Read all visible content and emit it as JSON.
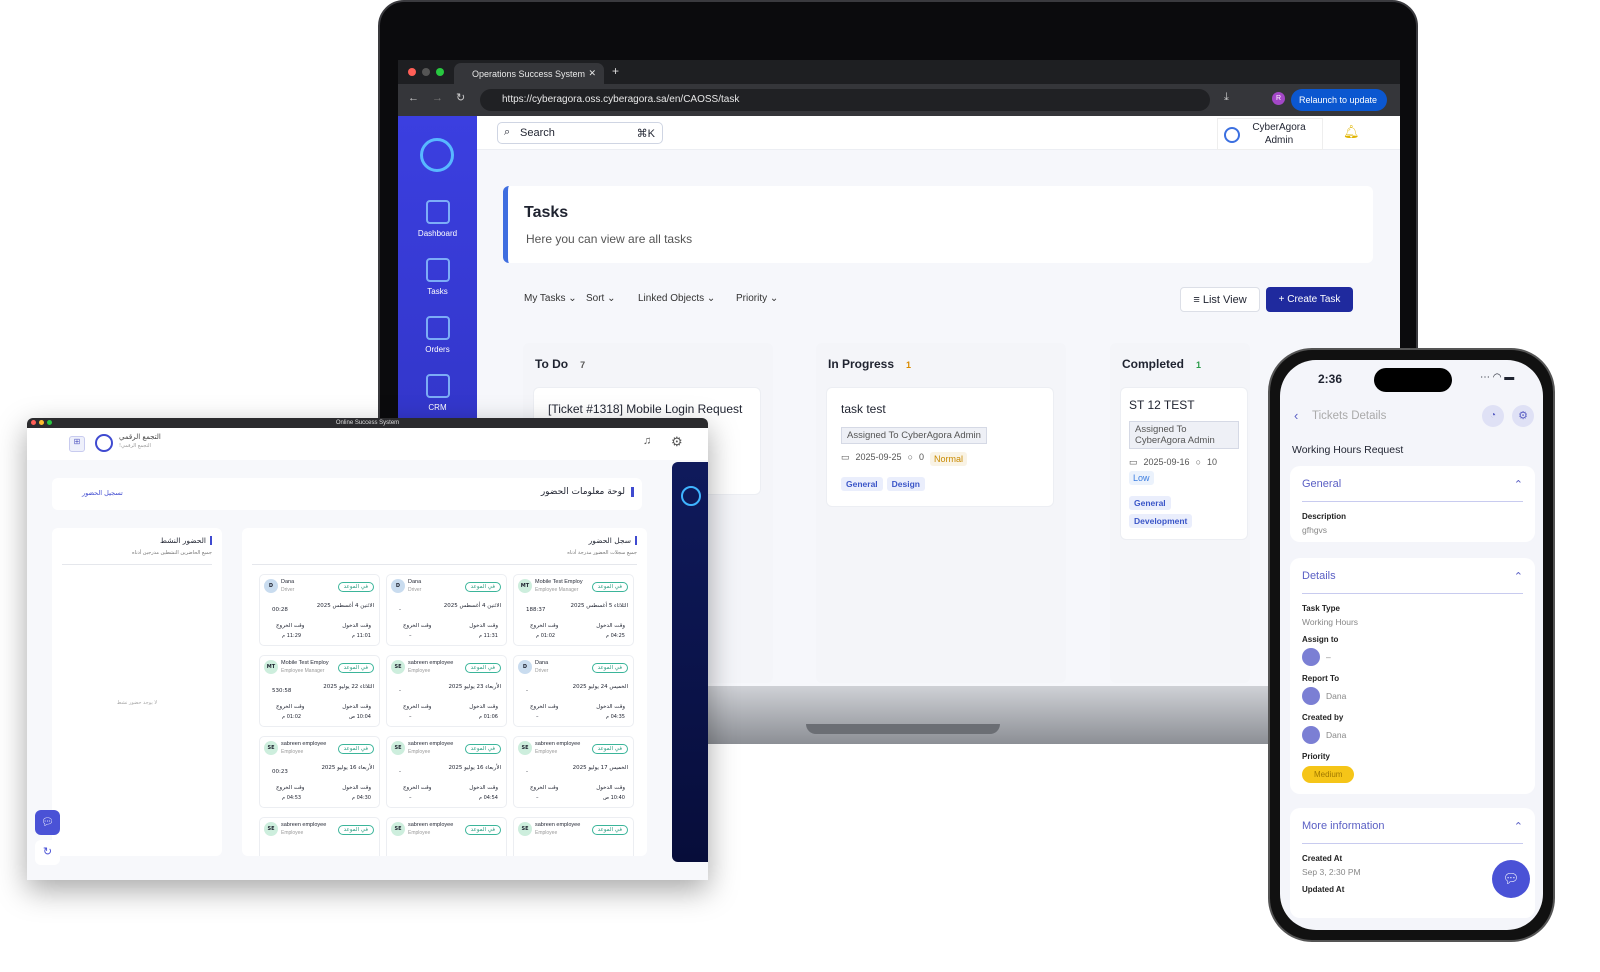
{
  "browser": {
    "tab_title": "Operations Success System",
    "url": "https://cyberagora.oss.cyberagora.sa/en/CAOSS/task",
    "relaunch": "Relaunch to update",
    "profile_initial": "R"
  },
  "app": {
    "search_placeholder": "Search",
    "search_shortcut": "⌘K",
    "user_line1": "CyberAgora",
    "user_line2": "Admin",
    "sidebar": [
      {
        "label": "Dashboard",
        "icon": "dashboard-icon"
      },
      {
        "label": "Tasks",
        "icon": "tasks-icon"
      },
      {
        "label": "Orders",
        "icon": "orders-icon"
      },
      {
        "label": "CRM",
        "icon": "crm-icon"
      }
    ],
    "page_title": "Tasks",
    "page_subtitle": "Here you can view are all tasks",
    "filters": [
      "My Tasks",
      "Sort",
      "Linked Objects",
      "Priority"
    ],
    "list_view": "List View",
    "create_task": "Create Task",
    "columns": [
      {
        "title": "To Do",
        "count": "7",
        "count_color": "#555",
        "cards": [
          {
            "title": "[Ticket #1318] Mobile Login Request"
          }
        ]
      },
      {
        "title": "In Progress",
        "count": "1",
        "count_color": "#d98a00",
        "cards": [
          {
            "title": "task test",
            "assigned": "Assigned To CyberAgora Admin",
            "date": "2025-09-25",
            "comments": "0",
            "priority": "Normal",
            "priority_color": "#c98a00",
            "tags": [
              "General",
              "Design"
            ]
          }
        ]
      },
      {
        "title": "Completed",
        "count": "1",
        "count_color": "#2a9c4a",
        "cards": [
          {
            "title": "ST 12 TEST",
            "assigned": "Assigned To CyberAgora Admin",
            "date": "2025-09-16",
            "comments": "10",
            "priority": "Low",
            "priority_color": "#3b7de0",
            "tags": [
              "General",
              "Development"
            ]
          }
        ]
      }
    ]
  },
  "desktop": {
    "window_title": "Online Success System",
    "brand": "التجمع الرقمي",
    "brand_sub": "التجمع الرقمي!",
    "dashboard_title": "لوحة معلومات الحضور",
    "checkin_link": "تسجيل الحضور",
    "active_title": "الحضور النشط",
    "active_subtitle": "جميع الحاضرين النشطين مدرجين أدناه",
    "active_empty": "لا يوجد حضور نشط",
    "log_title": "سجل الحضور",
    "log_subtitle": "جميع سجلات الحضور مدرجة أدناه",
    "in_label": "وقت الدخول",
    "out_label": "وقت الخروج",
    "status": "في الموعد",
    "records": [
      {
        "initials": "MT",
        "name": "Mobile Test Employ",
        "role": "Employee Manager",
        "date": "الثلاثاء 5 أغسطس 2025",
        "duration": "188:37",
        "in": "04:25 م",
        "out": "01:02 م"
      },
      {
        "initials": "D",
        "name": "Dana",
        "role": "Driver",
        "date": "الاثنين 4 أغسطس 2025",
        "duration": "-",
        "in": "11:31 م",
        "out": "–"
      },
      {
        "initials": "D",
        "name": "Dana",
        "role": "Driver",
        "date": "الاثنين 4 أغسطس 2025",
        "duration": "00:28",
        "in": "11:01 م",
        "out": "11:29 م"
      },
      {
        "initials": "D",
        "name": "Dana",
        "role": "Driver",
        "date": "الخميس 24 يوليو 2025",
        "duration": "-",
        "in": "04:35 م",
        "out": "–"
      },
      {
        "initials": "SE",
        "name": "sabreen employee",
        "role": "Employee",
        "date": "الأربعاء 23 يوليو 2025",
        "duration": "-",
        "in": "01:06 م",
        "out": "–"
      },
      {
        "initials": "MT",
        "name": "Mobile Test Employ",
        "role": "Employee Manager",
        "date": "الثلاثاء 22 يوليو 2025",
        "duration": "530:58",
        "in": "10:04 ص",
        "out": "01:02 م"
      },
      {
        "initials": "SE",
        "name": "sabreen employee",
        "role": "Employee",
        "date": "الخميس 17 يوليو 2025",
        "duration": "-",
        "in": "10:40 ص",
        "out": "–"
      },
      {
        "initials": "SE",
        "name": "sabreen employee",
        "role": "Employee",
        "date": "الأربعاء 16 يوليو 2025",
        "duration": "-",
        "in": "04:54 م",
        "out": "–"
      },
      {
        "initials": "SE",
        "name": "sabreen employee",
        "role": "Employee",
        "date": "الأربعاء 16 يوليو 2025",
        "duration": "00:23",
        "in": "04:30 م",
        "out": "04:53 م"
      },
      {
        "initials": "SE",
        "name": "sabreen employee",
        "role": "Employee",
        "date": "",
        "duration": "",
        "in": "",
        "out": ""
      },
      {
        "initials": "SE",
        "name": "sabreen employee",
        "role": "Employee",
        "date": "",
        "duration": "",
        "in": "",
        "out": ""
      },
      {
        "initials": "SE",
        "name": "sabreen employee",
        "role": "Employee",
        "date": "",
        "duration": "",
        "in": "",
        "out": ""
      }
    ]
  },
  "phone": {
    "time": "2:36",
    "nav_title": "Tickets Details",
    "ticket_title": "Working Hours Request",
    "general": {
      "title": "General",
      "description_label": "Description",
      "description": "gfhgvs"
    },
    "details": {
      "title": "Details",
      "task_type_label": "Task Type",
      "task_type": "Working Hours",
      "assign_label": "Assign to",
      "assign": "–",
      "report_label": "Report To",
      "report": "Dana",
      "created_by_label": "Created by",
      "created_by": "Dana",
      "priority_label": "Priority",
      "priority": "Medium",
      "priority_color": "#f5c518"
    },
    "more": {
      "title": "More information",
      "created_at_label": "Created At",
      "created_at": "Sep 3, 2:30 PM",
      "updated_at_label": "Updated At"
    }
  },
  "colors": {
    "sidebar": "#3b3fe0",
    "primary": "#1f2a9e",
    "navy": "#0f1a5c",
    "accent_purple": "#5a5fc4"
  }
}
